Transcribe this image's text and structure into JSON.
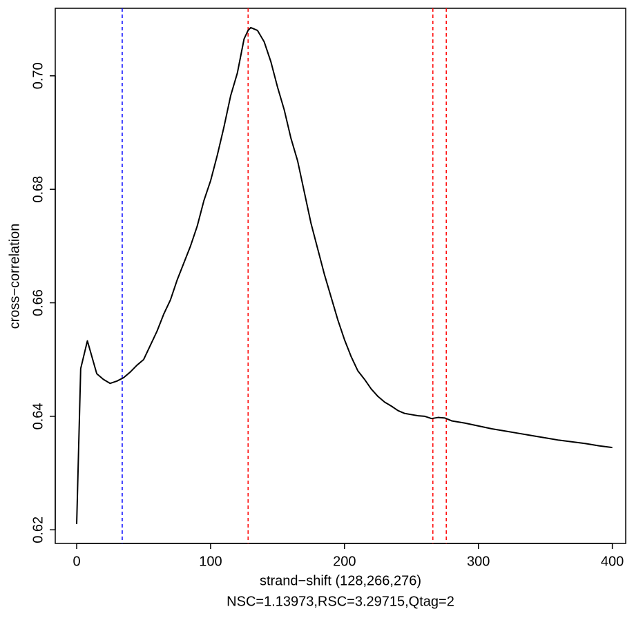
{
  "chart_data": {
    "type": "line",
    "x_label": "strand−shift (128,266,276)",
    "subtitle": "NSC=1.13973,RSC=3.29715,Qtag=2",
    "y_label": "cross−correlation",
    "x": [
      0,
      3,
      8,
      15,
      20,
      25,
      30,
      35,
      40,
      45,
      50,
      55,
      60,
      65,
      70,
      75,
      80,
      85,
      90,
      95,
      100,
      105,
      110,
      115,
      120,
      125,
      128,
      130,
      135,
      140,
      145,
      150,
      155,
      160,
      165,
      170,
      175,
      180,
      185,
      190,
      195,
      200,
      205,
      210,
      215,
      220,
      225,
      230,
      235,
      240,
      245,
      250,
      255,
      260,
      265,
      270,
      275,
      280,
      290,
      300,
      310,
      320,
      330,
      340,
      350,
      360,
      370,
      380,
      390,
      400
    ],
    "series": [
      {
        "color": "#000000",
        "values": [
          0.621,
          0.6484,
          0.6533,
          0.6475,
          0.6465,
          0.6458,
          0.6462,
          0.6468,
          0.6478,
          0.649,
          0.65,
          0.6525,
          0.655,
          0.658,
          0.6605,
          0.664,
          0.667,
          0.67,
          0.6735,
          0.678,
          0.6815,
          0.686,
          0.691,
          0.6965,
          0.7005,
          0.7065,
          0.708,
          0.7085,
          0.708,
          0.706,
          0.7025,
          0.698,
          0.694,
          0.689,
          0.685,
          0.6795,
          0.674,
          0.6695,
          0.665,
          0.661,
          0.657,
          0.6535,
          0.6505,
          0.648,
          0.6465,
          0.6448,
          0.6435,
          0.6425,
          0.6418,
          0.641,
          0.6405,
          0.6403,
          0.6401,
          0.64,
          0.6396,
          0.6398,
          0.6397,
          0.6392,
          0.6388,
          0.6383,
          0.6378,
          0.6374,
          0.637,
          0.6366,
          0.6362,
          0.6358,
          0.6355,
          0.6352,
          0.6348,
          0.6345
        ]
      }
    ],
    "vlines": [
      {
        "x": 34,
        "color": "#0000ff"
      },
      {
        "x": 128,
        "color": "#ff0000"
      },
      {
        "x": 266,
        "color": "#ff0000"
      },
      {
        "x": 276,
        "color": "#ff0000"
      }
    ],
    "xlim": [
      -16,
      410
    ],
    "ylim": [
      0.6176,
      0.7119
    ],
    "xticks": [
      0,
      100,
      200,
      300,
      400
    ],
    "yticks": [
      0.62,
      0.64,
      0.66,
      0.68,
      {
        "value": 0.7,
        "label": "0.70"
      }
    ]
  }
}
